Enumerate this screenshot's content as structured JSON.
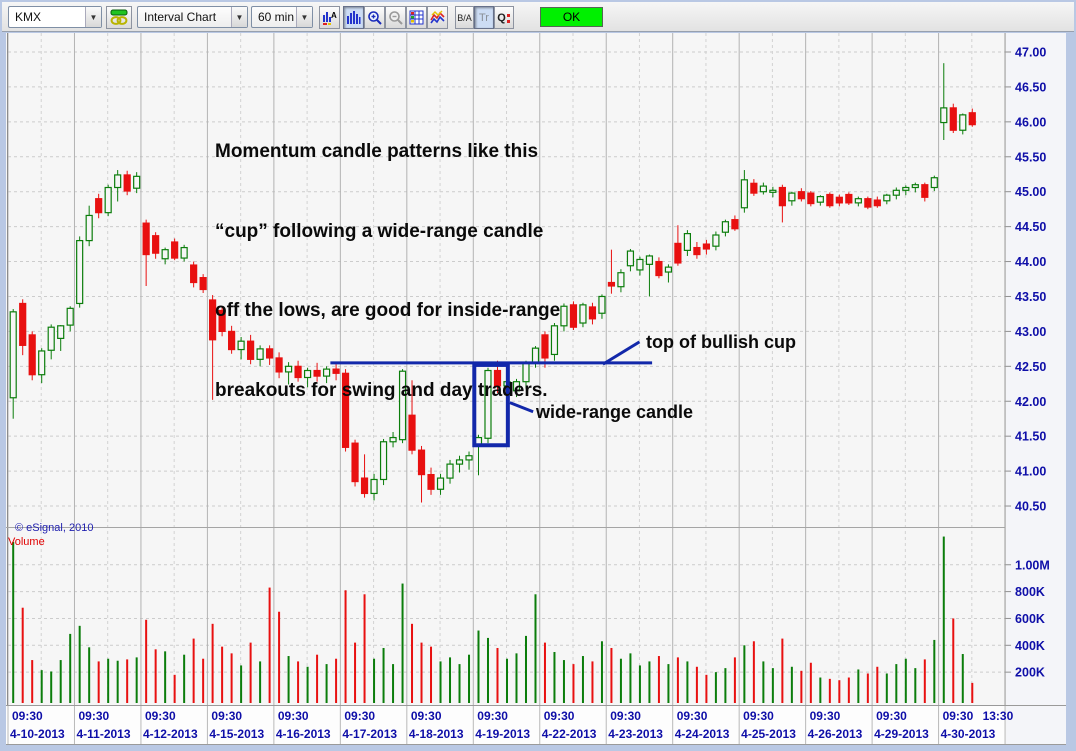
{
  "toolbar": {
    "symbol": "KMX",
    "chart_type_label": "Interval Chart",
    "interval_label": "60 min",
    "ok_label": "OK",
    "buttons": {
      "bid_ask": "B/A",
      "trade": "Tr",
      "quote": "Q"
    }
  },
  "annotations": {
    "note_lines": [
      "Momentum candle patterns like this",
      "“cup” following a wide-range candle",
      "off the lows, are good for inside-range",
      "breakouts for swing and day traders."
    ],
    "cup_label": "top of bullish cup",
    "wide_range_label": "wide-range candle",
    "copyright": "© eSignal, 2010",
    "volume_label": "Volume"
  },
  "colors": {
    "up": "#0b7d0b",
    "down": "#e81010",
    "drawing": "#1228aa",
    "axis_text": "#0e0ea8",
    "chart_bg": "#f6f6f6",
    "ok_green": "#00f000"
  },
  "chart_data": {
    "type": "candlestick",
    "symbol": "KMX",
    "interval": "60 min",
    "price_axis": {
      "max": 47.0,
      "min": 40.5,
      "step": 0.5
    },
    "volume_axis": {
      "values": [
        1000,
        800,
        600,
        400,
        200
      ],
      "labels": [
        "1.00M",
        "800K",
        "600K",
        "400K",
        "200K"
      ]
    },
    "x_axis": {
      "time_label": "09:30",
      "extra": {
        "day_index": 14,
        "label": "13:30"
      },
      "dates": [
        "4-10-2013",
        "4-11-2013",
        "4-12-2013",
        "4-15-2013",
        "4-16-2013",
        "4-17-2013",
        "4-18-2013",
        "4-19-2013",
        "4-22-2013",
        "4-23-2013",
        "4-24-2013",
        "4-25-2013",
        "4-26-2013",
        "4-29-2013",
        "4-30-2013"
      ]
    },
    "days": [
      {
        "date": "4-10-2013",
        "candles": [
          [
            42.05,
            43.32,
            41.75,
            43.28,
            1170
          ],
          [
            43.4,
            43.46,
            42.66,
            42.8,
            680
          ],
          [
            42.95,
            43.0,
            42.3,
            42.38,
            290
          ],
          [
            42.38,
            42.76,
            42.26,
            42.72,
            215
          ],
          [
            42.73,
            43.1,
            42.6,
            43.06,
            205
          ],
          [
            42.9,
            43.09,
            42.72,
            43.08,
            290
          ],
          [
            43.09,
            43.36,
            43.0,
            43.33,
            485
          ]
        ]
      },
      {
        "date": "4-11-2013",
        "candles": [
          [
            43.4,
            44.36,
            43.34,
            44.3,
            545
          ],
          [
            44.3,
            44.8,
            44.22,
            44.66,
            385
          ],
          [
            44.9,
            44.97,
            44.62,
            44.7,
            280
          ],
          [
            44.7,
            45.1,
            44.65,
            45.06,
            300
          ],
          [
            45.06,
            45.31,
            44.86,
            45.24,
            285
          ],
          [
            45.24,
            45.3,
            44.95,
            45.01,
            295
          ],
          [
            45.05,
            45.28,
            44.98,
            45.22,
            310
          ]
        ]
      },
      {
        "date": "4-12-2013",
        "candles": [
          [
            44.55,
            44.6,
            43.65,
            44.1,
            590
          ],
          [
            44.37,
            44.42,
            44.04,
            44.12,
            370
          ],
          [
            44.04,
            44.2,
            43.96,
            44.17,
            355
          ],
          [
            44.28,
            44.33,
            44.02,
            44.05,
            180
          ],
          [
            44.05,
            44.24,
            44.0,
            44.2,
            330
          ],
          [
            43.95,
            44.0,
            43.63,
            43.7,
            450
          ],
          [
            43.77,
            43.82,
            43.55,
            43.6,
            300
          ]
        ]
      },
      {
        "date": "4-15-2013",
        "candles": [
          [
            43.45,
            43.52,
            42.02,
            42.88,
            560
          ],
          [
            43.3,
            43.35,
            42.93,
            43.0,
            390
          ],
          [
            43.0,
            43.08,
            42.68,
            42.74,
            340
          ],
          [
            42.74,
            42.92,
            42.6,
            42.86,
            250
          ],
          [
            42.86,
            42.95,
            42.53,
            42.6,
            420
          ],
          [
            42.6,
            42.8,
            42.5,
            42.75,
            280
          ],
          [
            42.75,
            42.8,
            42.52,
            42.62,
            830
          ]
        ]
      },
      {
        "date": "4-16-2013",
        "candles": [
          [
            42.62,
            42.7,
            42.33,
            42.42,
            650
          ],
          [
            42.42,
            42.56,
            42.24,
            42.5,
            320
          ],
          [
            42.5,
            42.58,
            42.28,
            42.34,
            280
          ],
          [
            42.34,
            42.48,
            42.2,
            42.44,
            240
          ],
          [
            42.44,
            42.55,
            42.28,
            42.36,
            330
          ],
          [
            42.36,
            42.5,
            42.26,
            42.46,
            260
          ],
          [
            42.46,
            42.53,
            42.3,
            42.4,
            300
          ]
        ]
      },
      {
        "date": "4-17-2013",
        "candles": [
          [
            42.4,
            42.46,
            41.28,
            41.34,
            810
          ],
          [
            41.4,
            41.45,
            40.78,
            40.85,
            420
          ],
          [
            40.9,
            41.24,
            40.62,
            40.68,
            780
          ],
          [
            40.68,
            40.96,
            40.58,
            40.88,
            300
          ],
          [
            40.88,
            41.46,
            40.8,
            41.42,
            380
          ],
          [
            41.42,
            41.56,
            41.34,
            41.48,
            260
          ],
          [
            41.45,
            42.46,
            41.4,
            42.43,
            860
          ]
        ]
      },
      {
        "date": "4-18-2013",
        "candles": [
          [
            41.8,
            42.3,
            41.24,
            41.3,
            560
          ],
          [
            41.3,
            41.36,
            40.55,
            40.95,
            420
          ],
          [
            40.95,
            41.05,
            40.66,
            40.74,
            390
          ],
          [
            40.74,
            40.96,
            40.66,
            40.9,
            280
          ],
          [
            40.9,
            41.16,
            40.82,
            41.1,
            310
          ],
          [
            41.1,
            41.22,
            40.98,
            41.16,
            260
          ],
          [
            41.16,
            41.28,
            41.02,
            41.22,
            330
          ]
        ]
      },
      {
        "date": "4-19-2013",
        "candles": [
          [
            41.37,
            41.52,
            40.94,
            41.48,
            510
          ],
          [
            41.47,
            42.48,
            41.4,
            42.44,
            455
          ],
          [
            42.44,
            42.58,
            42.12,
            42.22,
            380
          ],
          [
            42.22,
            42.36,
            42.08,
            42.28,
            300
          ],
          [
            42.15,
            42.32,
            42.06,
            42.28,
            340
          ],
          [
            42.28,
            42.58,
            42.18,
            42.56,
            470
          ],
          [
            42.56,
            42.79,
            42.48,
            42.76,
            780
          ]
        ]
      },
      {
        "date": "4-22-2013",
        "candles": [
          [
            42.95,
            43.0,
            42.48,
            42.62,
            420
          ],
          [
            42.67,
            43.12,
            42.58,
            43.08,
            350
          ],
          [
            43.08,
            43.4,
            43.0,
            43.36,
            290
          ],
          [
            43.38,
            43.43,
            43.02,
            43.06,
            260
          ],
          [
            43.12,
            43.41,
            43.06,
            43.38,
            320
          ],
          [
            43.35,
            43.41,
            43.1,
            43.18,
            280
          ],
          [
            43.26,
            43.53,
            43.18,
            43.5,
            430
          ]
        ]
      },
      {
        "date": "4-23-2013",
        "candles": [
          [
            43.7,
            44.17,
            43.54,
            43.65,
            380
          ],
          [
            43.64,
            43.89,
            43.56,
            43.84,
            300
          ],
          [
            43.94,
            44.18,
            43.86,
            44.15,
            340
          ],
          [
            43.88,
            44.07,
            43.8,
            44.03,
            250
          ],
          [
            43.96,
            44.1,
            43.5,
            44.08,
            280
          ],
          [
            44.0,
            44.06,
            43.76,
            43.8,
            320
          ],
          [
            43.85,
            43.96,
            43.7,
            43.92,
            260
          ]
        ]
      },
      {
        "date": "4-24-2013",
        "candles": [
          [
            44.26,
            44.52,
            43.94,
            43.98,
            310
          ],
          [
            44.16,
            44.45,
            44.08,
            44.4,
            280
          ],
          [
            44.2,
            44.28,
            44.04,
            44.1,
            240
          ],
          [
            44.25,
            44.31,
            44.1,
            44.18,
            180
          ],
          [
            44.22,
            44.43,
            44.16,
            44.38,
            200
          ],
          [
            44.42,
            44.6,
            44.36,
            44.57,
            230
          ],
          [
            44.6,
            44.66,
            44.44,
            44.47,
            310
          ]
        ]
      },
      {
        "date": "4-25-2013",
        "candles": [
          [
            44.77,
            45.31,
            44.7,
            45.17,
            400
          ],
          [
            45.12,
            45.18,
            44.94,
            44.98,
            430
          ],
          [
            45.0,
            45.13,
            44.96,
            45.08,
            280
          ],
          [
            45.0,
            45.07,
            44.92,
            45.02,
            230
          ],
          [
            45.06,
            45.1,
            44.56,
            44.8,
            450
          ],
          [
            44.87,
            45.0,
            44.8,
            44.98,
            240
          ],
          [
            45.0,
            45.05,
            44.86,
            44.9,
            210
          ]
        ]
      },
      {
        "date": "4-26-2013",
        "candles": [
          [
            44.98,
            45.01,
            44.79,
            44.83,
            270
          ],
          [
            44.85,
            44.95,
            44.8,
            44.93,
            160
          ],
          [
            44.96,
            44.99,
            44.77,
            44.8,
            150
          ],
          [
            44.92,
            44.96,
            44.79,
            44.84,
            140
          ],
          [
            44.96,
            44.99,
            44.81,
            44.84,
            160
          ],
          [
            44.84,
            44.93,
            44.79,
            44.9,
            220
          ],
          [
            44.9,
            44.93,
            44.75,
            44.78,
            190
          ]
        ]
      },
      {
        "date": "4-29-2013",
        "candles": [
          [
            44.88,
            44.93,
            44.77,
            44.8,
            240
          ],
          [
            44.87,
            44.97,
            44.82,
            44.95,
            190
          ],
          [
            44.95,
            45.06,
            44.89,
            45.02,
            260
          ],
          [
            45.02,
            45.09,
            44.95,
            45.06,
            300
          ],
          [
            45.06,
            45.13,
            44.99,
            45.1,
            230
          ],
          [
            45.1,
            45.13,
            44.86,
            44.92,
            295
          ],
          [
            45.06,
            45.23,
            45.01,
            45.2,
            440
          ]
        ]
      },
      {
        "date": "4-30-2013",
        "candles": [
          [
            45.99,
            46.84,
            45.74,
            46.2,
            1210
          ],
          [
            46.2,
            46.26,
            45.84,
            45.88,
            600
          ],
          [
            45.88,
            46.12,
            45.82,
            46.1,
            335
          ],
          [
            46.13,
            46.19,
            45.93,
            45.96,
            120
          ]
        ]
      }
    ],
    "drawings": {
      "cup_line": {
        "price": 42.55,
        "day_from": 4.85,
        "day_to": 9.69
      },
      "cup_pointer": {
        "from": [
          8.95,
          42.53
        ],
        "to": [
          9.5,
          42.85
        ]
      },
      "wide_range_rect": {
        "day_from": 7.0,
        "day_to": 7.52,
        "price_top": 42.52,
        "price_bottom": 41.37
      },
      "wide_range_pointer": {
        "from": [
          7.55,
          41.98
        ],
        "to": [
          7.9,
          41.85
        ]
      }
    }
  }
}
